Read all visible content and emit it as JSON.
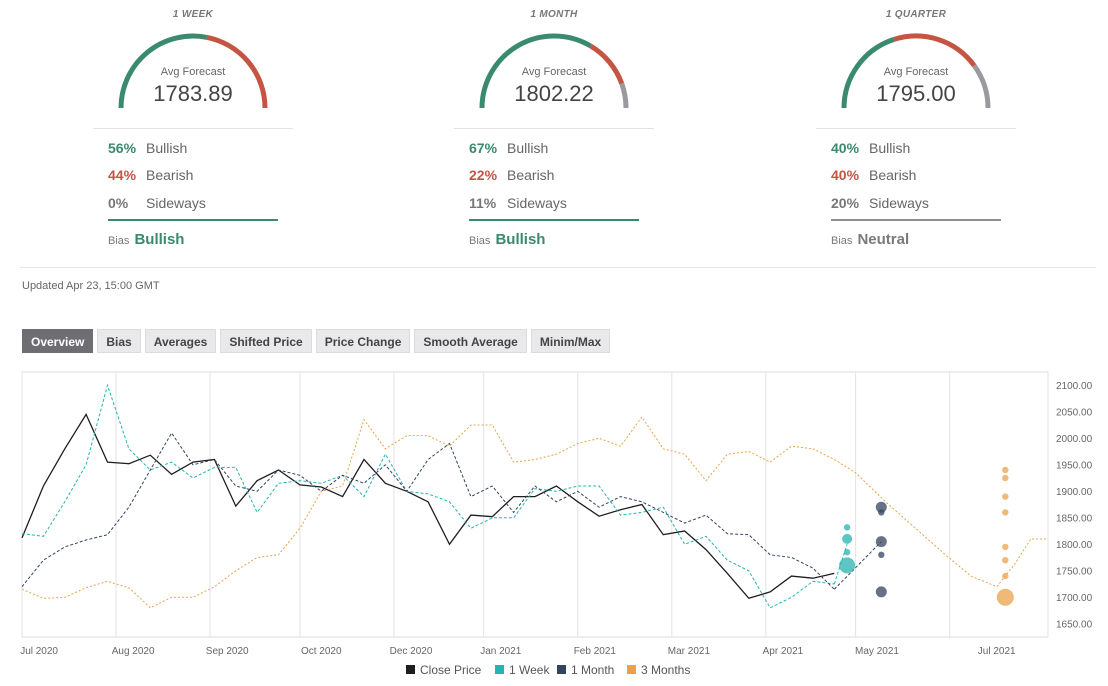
{
  "gauges": [
    {
      "period": "1 WEEK",
      "caption": "Avg Forecast",
      "value": "1783.89",
      "bullish_pct": "56%",
      "bullish_label": "Bullish",
      "bearish_pct": "44%",
      "bearish_label": "Bearish",
      "sideways_pct": "0%",
      "sideways_label": "Sideways",
      "bias_label": "Bias",
      "bias_value": "Bullish",
      "split": {
        "bullish": 0.56,
        "bearish": 0.44,
        "sideways": 0.0
      }
    },
    {
      "period": "1 MONTH",
      "caption": "Avg Forecast",
      "value": "1802.22",
      "bullish_pct": "67%",
      "bullish_label": "Bullish",
      "bearish_pct": "22%",
      "bearish_label": "Bearish",
      "sideways_pct": "11%",
      "sideways_label": "Sideways",
      "bias_label": "Bias",
      "bias_value": "Bullish",
      "split": {
        "bullish": 0.67,
        "bearish": 0.22,
        "sideways": 0.11
      }
    },
    {
      "period": "1 QUARTER",
      "caption": "Avg Forecast",
      "value": "1795.00",
      "bullish_pct": "40%",
      "bullish_label": "Bullish",
      "bearish_pct": "40%",
      "bearish_label": "Bearish",
      "sideways_pct": "20%",
      "sideways_label": "Sideways",
      "bias_label": "Bias",
      "bias_value": "Neutral",
      "split": {
        "bullish": 0.4,
        "bearish": 0.4,
        "sideways": 0.2
      }
    }
  ],
  "colors": {
    "bullish": "#3a8a6e",
    "bearish": "#c45542",
    "sideways": "#9a9a9e",
    "close": "#1e1e1e",
    "week": "#27b3b0",
    "month": "#34435e",
    "quarter": "#e9a24a"
  },
  "updated": "Updated Apr 23, 15:00 GMT",
  "tabs": [
    "Overview",
    "Bias",
    "Averages",
    "Shifted Price",
    "Price Change",
    "Smooth Average",
    "Minim/Max"
  ],
  "active_tab": "Overview",
  "chart_data": {
    "type": "line",
    "x_labels": [
      "Jul 2020",
      "Aug 2020",
      "Sep 2020",
      "Oct 2020",
      "Dec 2020",
      "Jan 2021",
      "Feb 2021",
      "Mar 2021",
      "Apr 2021",
      "May 2021",
      "Jul 2021"
    ],
    "y_ticks": [
      "2100.00",
      "2050.00",
      "2000.00",
      "1950.00",
      "1900.00",
      "1850.00",
      "1800.00",
      "1750.00",
      "1700.00",
      "1650.00"
    ],
    "ylim": [
      1625,
      2125
    ],
    "legend": [
      "Close Price",
      "1 Week",
      "1 Month",
      "3 Months"
    ],
    "legend_position": "bottom",
    "grid": "vertical",
    "series": [
      {
        "name": "Close Price",
        "x": [
          0,
          0.5,
          1,
          1.5,
          2,
          2.5,
          3,
          3.5,
          4,
          4.5,
          5,
          5.5,
          6,
          6.5,
          7,
          7.5,
          8,
          8.5,
          9,
          9.5,
          10,
          10.5,
          11,
          11.5,
          12,
          12.5,
          13,
          13.5,
          14,
          14.5,
          15,
          15.5,
          16,
          16.5,
          17,
          17.5,
          18,
          18.5,
          19
        ],
        "y": [
          1812,
          1910,
          1980,
          2045,
          1955,
          1952,
          1968,
          1932,
          1955,
          1960,
          1872,
          1920,
          1940,
          1912,
          1908,
          1890,
          1960,
          1915,
          1900,
          1880,
          1800,
          1855,
          1852,
          1890,
          1890,
          1910,
          1880,
          1853,
          1865,
          1875,
          1818,
          1825,
          1790,
          1745,
          1698,
          1710,
          1740,
          1736,
          1745
        ]
      },
      {
        "name": "1 Week",
        "x": [
          0,
          0.5,
          1,
          1.5,
          2,
          2.5,
          3,
          3.5,
          4,
          4.5,
          5,
          5.5,
          6,
          6.5,
          7,
          7.5,
          8,
          8.5,
          9,
          9.5,
          10,
          10.5,
          11,
          11.5,
          12,
          12.5,
          13,
          13.5,
          14,
          14.5,
          15,
          15.5,
          16,
          16.5,
          17,
          17.5,
          18,
          18.5,
          19
        ],
        "y": [
          1820,
          1815,
          1880,
          1950,
          2100,
          1980,
          1940,
          1955,
          1925,
          1945,
          1945,
          1860,
          1915,
          1920,
          1915,
          1930,
          1890,
          1970,
          1900,
          1895,
          1880,
          1830,
          1850,
          1850,
          1905,
          1900,
          1910,
          1910,
          1855,
          1860,
          1870,
          1800,
          1815,
          1770,
          1750,
          1680,
          1700,
          1730,
          1725
        ]
      },
      {
        "name": "1 Month",
        "x": [
          0,
          0.5,
          1,
          1.5,
          2,
          2.5,
          3,
          3.5,
          4,
          4.5,
          5,
          5.5,
          6,
          6.5,
          7,
          7.5,
          8,
          8.5,
          9,
          9.5,
          10,
          10.5,
          11,
          11.5,
          12,
          12.5,
          13,
          13.5,
          14,
          14.5,
          15,
          15.5,
          16,
          16.5,
          17,
          17.5,
          18,
          18.5,
          19
        ],
        "y": [
          1720,
          1770,
          1795,
          1808,
          1818,
          1870,
          1940,
          2010,
          1950,
          1960,
          1910,
          1900,
          1940,
          1930,
          1900,
          1930,
          1915,
          1950,
          1900,
          1960,
          1990,
          1890,
          1910,
          1860,
          1910,
          1880,
          1900,
          1870,
          1890,
          1880,
          1860,
          1840,
          1855,
          1820,
          1818,
          1780,
          1775,
          1755,
          1715
        ]
      },
      {
        "name": "3 Months",
        "x": [
          0,
          0.5,
          1,
          1.5,
          2,
          2.5,
          3,
          3.5,
          4,
          4.5,
          5,
          5.5,
          6,
          6.5,
          7,
          7.5,
          8,
          8.5,
          9,
          9.5,
          10,
          10.5,
          11,
          11.5,
          12,
          12.5,
          13,
          13.5,
          14,
          14.5,
          15,
          15.5,
          16,
          16.5,
          17,
          17.5,
          18,
          18.5,
          19
        ],
        "y": [
          1715,
          1698,
          1700,
          1718,
          1730,
          1718,
          1680,
          1700,
          1700,
          1720,
          1750,
          1775,
          1780,
          1830,
          1900,
          1910,
          2035,
          1980,
          2005,
          2005,
          1985,
          2025,
          2025,
          1955,
          1960,
          1970,
          1990,
          2000,
          1985,
          2040,
          1980,
          1970,
          1920,
          1970,
          1975,
          1955,
          1985,
          1980,
          1960
        ]
      }
    ],
    "forecast_points": [
      {
        "series": "1 Week",
        "x": 19.3,
        "values": [
          1832,
          1810,
          1785,
          1760
        ]
      },
      {
        "series": "1 Month",
        "x": 20.1,
        "values": [
          1870,
          1860,
          1805,
          1780,
          1710
        ]
      },
      {
        "series": "3 Months",
        "x": 23.0,
        "values": [
          1940,
          1925,
          1890,
          1860,
          1795,
          1770,
          1740,
          1700
        ]
      }
    ]
  }
}
